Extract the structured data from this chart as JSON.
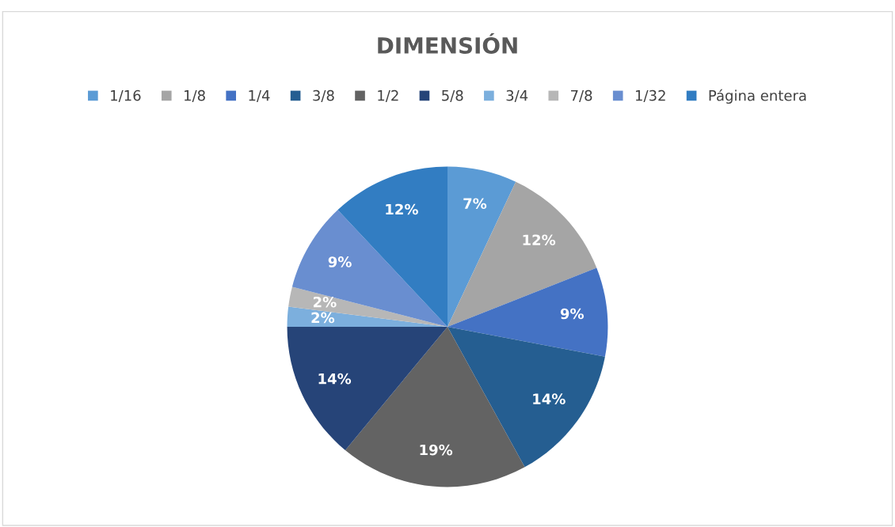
{
  "chart_data": {
    "type": "pie",
    "title": "DIMENSIÓN",
    "categories": [
      "1/16",
      "1/8",
      "1/4",
      "3/8",
      "1/2",
      "5/8",
      "3/4",
      "7/8",
      "1/32",
      "Página entera"
    ],
    "values": [
      7,
      12,
      9,
      14,
      19,
      14,
      2,
      2,
      9,
      12
    ],
    "colors": [
      "#5b9bd5",
      "#a5a5a5",
      "#4472c4",
      "#255e91",
      "#636363",
      "#264478",
      "#7cafdd",
      "#b7b7b7",
      "#698ed0",
      "#327dc2"
    ],
    "value_labels": [
      "7%",
      "12%",
      "9%",
      "14%",
      "19%",
      "14%",
      "2%",
      "2%",
      "9%",
      "12%"
    ],
    "legend": "top"
  }
}
